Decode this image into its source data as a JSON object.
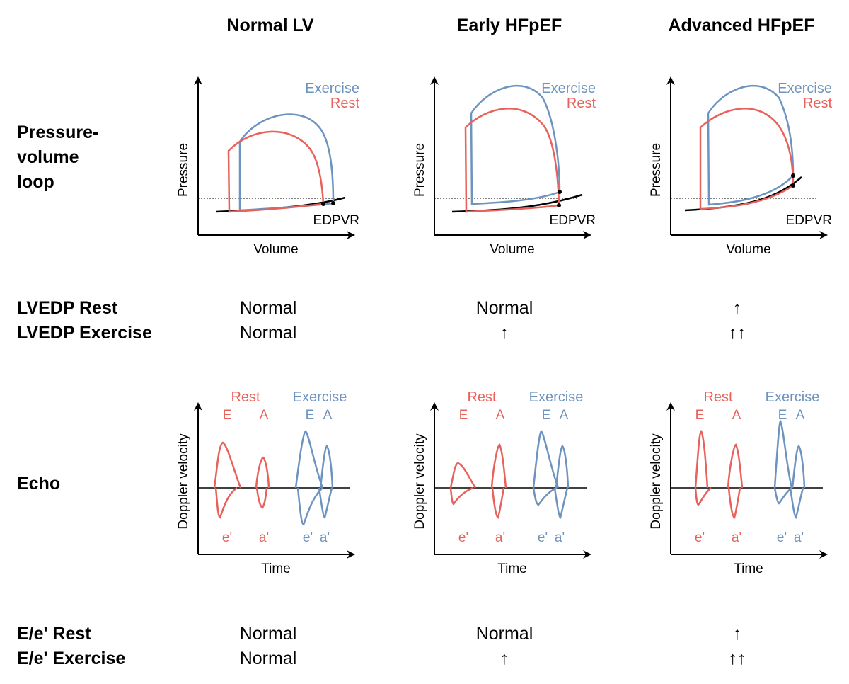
{
  "columns": [
    "Normal LV",
    "Early HFpEF",
    "Advanced HFpEF"
  ],
  "rows": {
    "pv_loop": [
      "Pressure-",
      "volume",
      "loop"
    ],
    "lvedp": [
      "LVEDP Rest",
      "LVEDP Exercise"
    ],
    "echo": "Echo",
    "ee": [
      "E/e' Rest",
      "E/e' Exercise"
    ]
  },
  "pv": {
    "ylabel": "Pressure",
    "xlabel": "Volume",
    "exercise_label": "Exercise",
    "rest_label": "Rest",
    "edpvr_label": "EDPVR"
  },
  "echo_plot": {
    "ylabel": "Doppler velocity",
    "xlabel": "Time",
    "rest_label": "Rest",
    "exercise_label": "Exercise",
    "E": "E",
    "A": "A",
    "e_prime": "e'",
    "a_prime": "a'"
  },
  "lvedp_values": [
    {
      "rest": "Normal",
      "exercise": "Normal"
    },
    {
      "rest": "Normal",
      "exercise": "↑"
    },
    {
      "rest": "↑",
      "exercise": "↑↑"
    }
  ],
  "ee_values": [
    {
      "rest": "Normal",
      "exercise": "Normal"
    },
    {
      "rest": "Normal",
      "exercise": "↑"
    },
    {
      "rest": "↑",
      "exercise": "↑↑"
    }
  ],
  "colors": {
    "rest": "#e8615a",
    "exercise": "#6d93bf",
    "axis": "#000000"
  }
}
